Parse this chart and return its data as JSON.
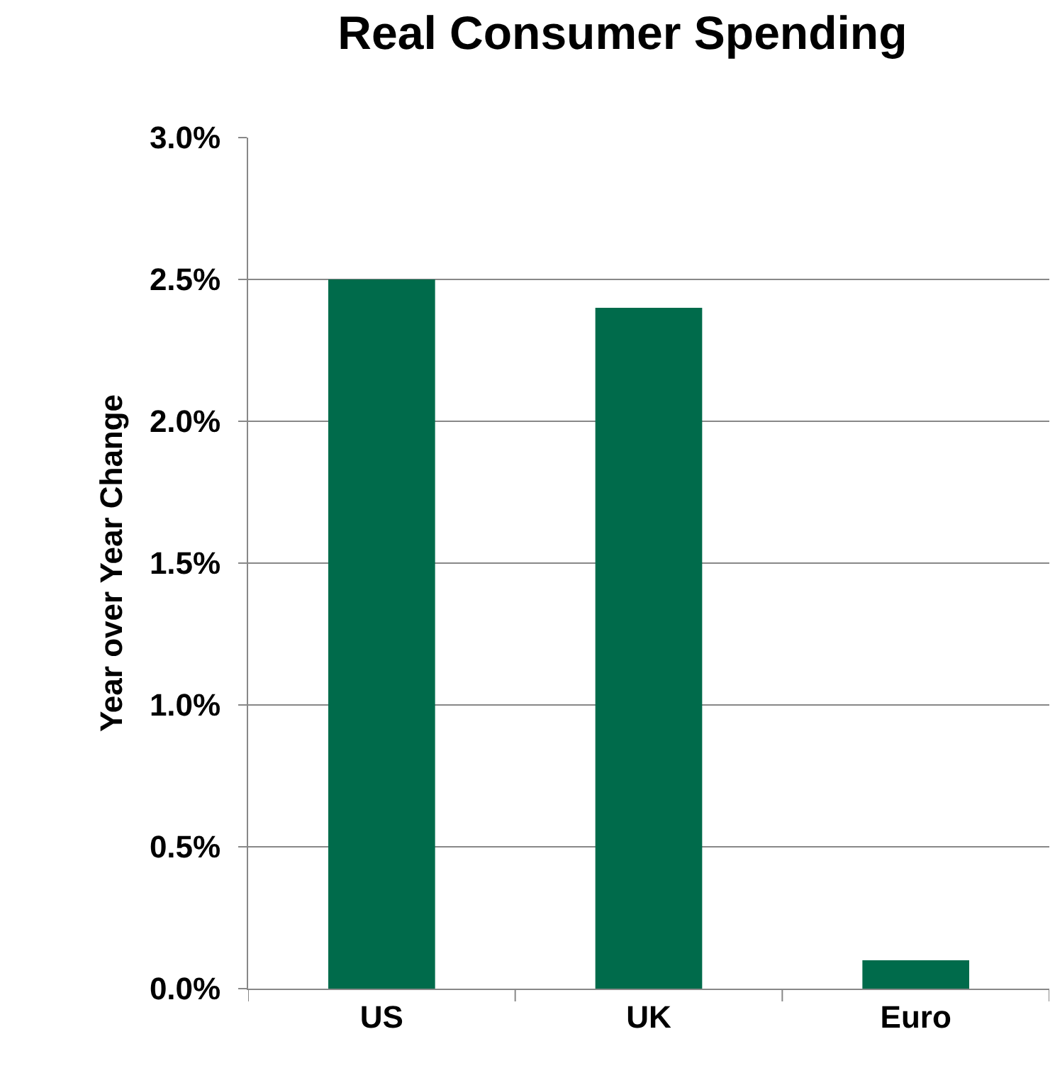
{
  "chart_data": {
    "type": "bar",
    "title": "Real Consumer Spending",
    "ylabel": "Year over Year Change",
    "categories": [
      "US",
      "UK",
      "Euro"
    ],
    "values": [
      2.5,
      2.4,
      0.1
    ],
    "color": "#006b4b",
    "ylim": [
      0,
      3
    ],
    "yticks": [
      {
        "value": 0,
        "label": "0.0%"
      },
      {
        "value": 0.5,
        "label": "0.5%"
      },
      {
        "value": 1,
        "label": "1.0%"
      },
      {
        "value": 1.5,
        "label": "1.5%"
      },
      {
        "value": 2,
        "label": "2.0%"
      },
      {
        "value": 2.5,
        "label": "2.5%"
      },
      {
        "value": 3,
        "label": "3.0%"
      }
    ],
    "grid": "y"
  }
}
